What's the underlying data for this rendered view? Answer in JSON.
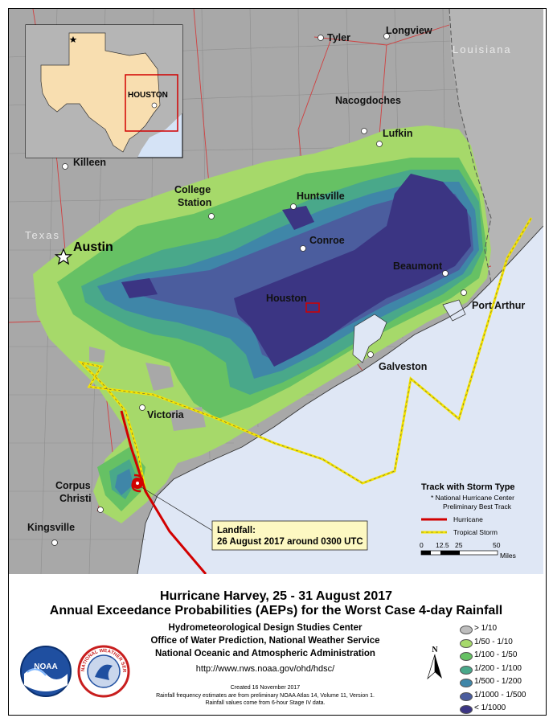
{
  "title_line1": "Hurricane Harvey, 25 - 31 August 2017",
  "title_line2": "Annual Exceedance Probabilities (AEPs) for the Worst Case 4-day Rainfall",
  "org_lines": [
    "Hydrometeorological Design Studies Center",
    "Office of Water Prediction, National Weather Service",
    "National Oceanic and Atmospheric Administration"
  ],
  "url": "http://www.nws.noaa.gov/ohd/hdsc/",
  "created": "Created 16 November 2017",
  "note1": "Rainfall frequency estimates are from preliminary NOAA Atlas 14, Volume 11, Version 1.",
  "note2": "Rainfall values come from 6-hour Stage IV data.",
  "map": {
    "cities": {
      "tyler": "Tyler",
      "longview": "Longview",
      "nacogdoches": "Nacogdoches",
      "lufkin": "Lufkin",
      "killeen": "Killeen",
      "college": "College",
      "station": "Station",
      "huntsville": "Huntsville",
      "austin": "Austin",
      "conroe": "Conroe",
      "beaumont": "Beaumont",
      "houston": "Houston",
      "port_arthur": "Port Arthur",
      "galveston": "Galveston",
      "victoria": "Victoria",
      "corpus": "Corpus",
      "christi": "Christi",
      "kingsville": "Kingsville"
    },
    "states": {
      "louisiana": "Louisiana",
      "texas": "Texas"
    },
    "inset_label": "HOUSTON",
    "landfall_title": "Landfall:",
    "landfall_text": "26 August 2017 around 0300 UTC",
    "track": {
      "title": "Track with Storm Type",
      "note1": "* National Hurricane Center",
      "note2": "Preliminary Best Track",
      "hurricane": "Hurricane",
      "tropical_storm": "Tropical Storm"
    },
    "scale": {
      "ticks": [
        "0",
        "12.5",
        "25",
        "50"
      ],
      "unit": "Miles"
    },
    "north": "N"
  },
  "legend": {
    "items": [
      {
        "label": "> 1/10",
        "color": "#bdbdbd"
      },
      {
        "label": "1/50 - 1/10",
        "color": "#a6d96a"
      },
      {
        "label": "1/100 - 1/50",
        "color": "#66c164"
      },
      {
        "label": "1/200 - 1/100",
        "color": "#49a88a"
      },
      {
        "label": "1/500 - 1/200",
        "color": "#3f86a8"
      },
      {
        "label": "1/1000 - 1/500",
        "color": "#4b5d9e"
      },
      {
        "label": "< 1/1000",
        "color": "#3b3583"
      }
    ]
  },
  "logos": {
    "noaa": "NOAA",
    "nws": "NATIONAL WEATHER SERVICE"
  }
}
